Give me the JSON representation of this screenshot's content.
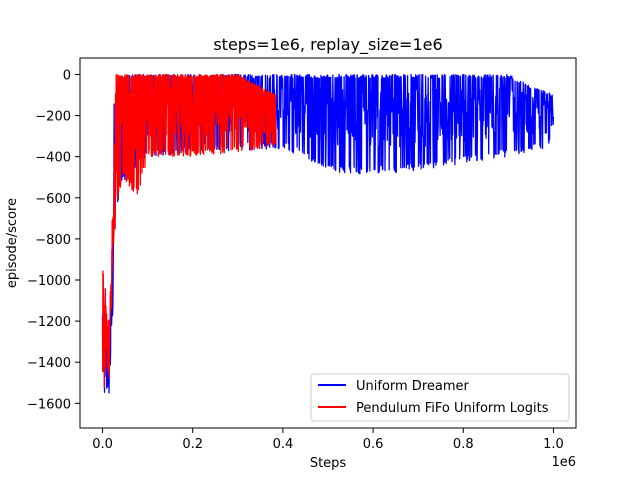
{
  "chart_data": {
    "type": "line",
    "title": "steps=1e6, replay_size=1e6",
    "xlabel": "Steps",
    "ylabel": "episode/score",
    "x_offset_text": "1e6",
    "xlim": [
      -50000,
      1050000
    ],
    "ylim": [
      -1720,
      80
    ],
    "x_ticks": [
      0,
      200000,
      400000,
      600000,
      800000,
      1000000
    ],
    "x_tick_labels": [
      "0.0",
      "0.2",
      "0.4",
      "0.6",
      "0.8",
      "1.0"
    ],
    "y_ticks": [
      0,
      -200,
      -400,
      -600,
      -800,
      -1000,
      -1200,
      -1400,
      -1600
    ],
    "y_tick_labels": [
      "0",
      "−200",
      "−400",
      "−600",
      "−800",
      "−1000",
      "−1200",
      "−1400",
      "−1600"
    ],
    "grid": false,
    "legend_position": "lower-right",
    "series": [
      {
        "name": "Uniform Dreamer",
        "color": "#0000ff",
        "x_range": [
          0,
          1000000
        ],
        "envelope": [
          [
            0,
            -1600,
            -950
          ],
          [
            5000,
            -1640,
            -1150
          ],
          [
            10000,
            -1600,
            -1200
          ],
          [
            15000,
            -1580,
            -1300
          ],
          [
            20000,
            -1450,
            -900
          ],
          [
            25000,
            -1100,
            -130
          ],
          [
            30000,
            -700,
            -50
          ],
          [
            40000,
            -550,
            0
          ],
          [
            60000,
            -480,
            0
          ],
          [
            100000,
            -400,
            0
          ],
          [
            200000,
            -380,
            0
          ],
          [
            400000,
            -360,
            0
          ],
          [
            530000,
            -490,
            0
          ],
          [
            700000,
            -470,
            0
          ],
          [
            900000,
            -400,
            0
          ],
          [
            1000000,
            -350,
            -100
          ]
        ]
      },
      {
        "name": "Pendulum FiFo Uniform Logits",
        "color": "#ff0000",
        "x_range": [
          0,
          385000
        ],
        "envelope": [
          [
            0,
            -1630,
            -920
          ],
          [
            5000,
            -1550,
            -1000
          ],
          [
            10000,
            -1400,
            -1150
          ],
          [
            15000,
            -1550,
            -1200
          ],
          [
            20000,
            -1200,
            -800
          ],
          [
            25000,
            -900,
            -300
          ],
          [
            30000,
            -650,
            0
          ],
          [
            45000,
            -500,
            0
          ],
          [
            78000,
            -600,
            0
          ],
          [
            100000,
            -400,
            0
          ],
          [
            200000,
            -400,
            0
          ],
          [
            300000,
            -380,
            0
          ],
          [
            385000,
            -350,
            -100
          ]
        ]
      }
    ]
  }
}
